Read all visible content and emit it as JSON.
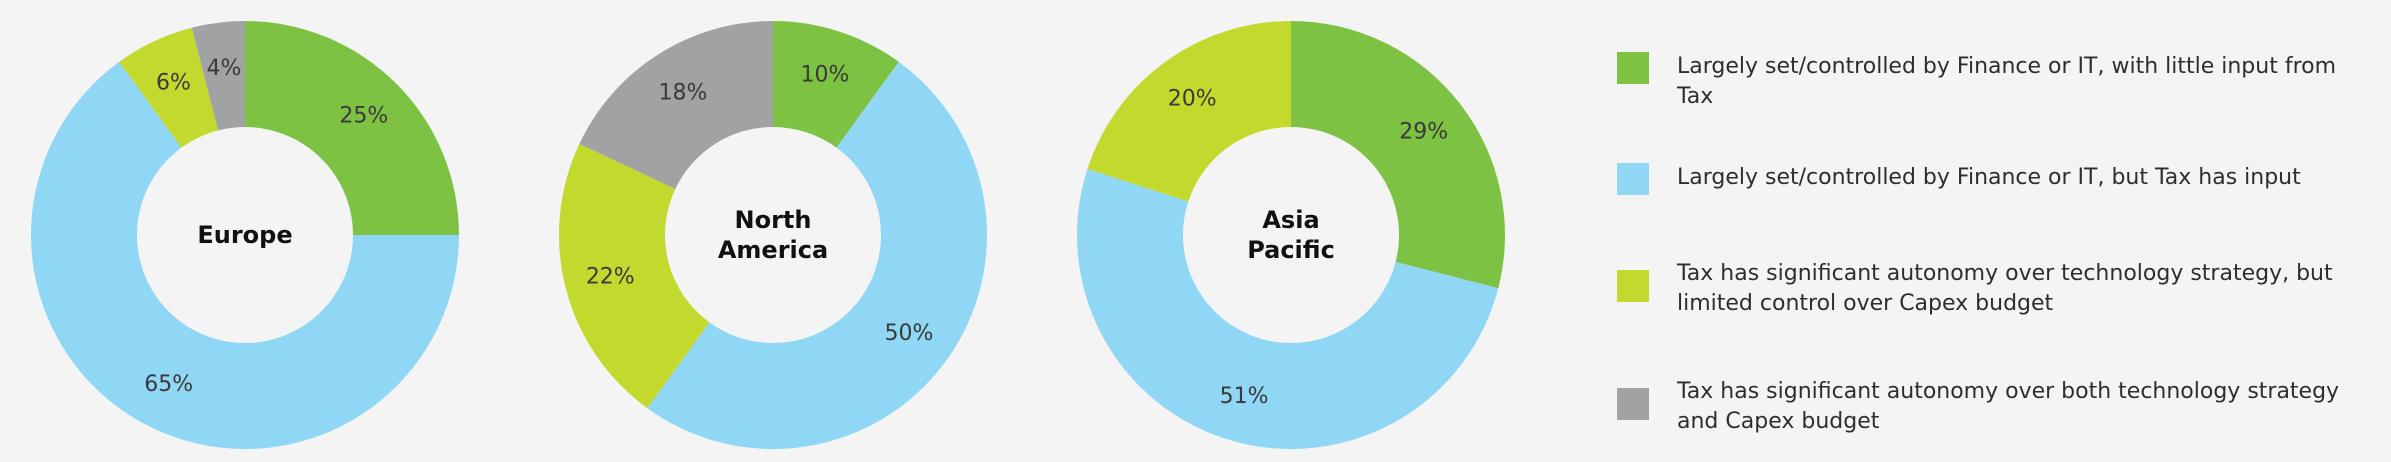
{
  "colors": {
    "background": "#f4f4f4",
    "finance_little_input": "#7dc242",
    "finance_tax_input": "#8fd7f5",
    "tax_autonomy_tech": "#c4d92e",
    "tax_autonomy_both": "#a0a2a4"
  },
  "chart_data": [
    {
      "type": "pie",
      "title": "Europe",
      "center_lines": [
        "Europe"
      ],
      "donut": true,
      "start_angle": "12 o'clock, clockwise",
      "categories": [
        "Largely set/controlled by Finance or IT, with little input from Tax",
        "Largely set/controlled by Finance or IT, but Tax has input",
        "Tax has significant autonomy over technology strategy, but limited control over Capex budget",
        "Tax has significant autonomy over both technology strategy and Capex budget"
      ],
      "values": [
        25,
        65,
        6,
        4
      ],
      "labels": [
        "25%",
        "65%",
        "6%",
        "4%"
      ]
    },
    {
      "type": "pie",
      "title": "North America",
      "center_lines": [
        "North",
        "America"
      ],
      "donut": true,
      "start_angle": "12 o'clock, clockwise",
      "categories": [
        "Largely set/controlled by Finance or IT, with little input from Tax",
        "Largely set/controlled by Finance or IT, but Tax has input",
        "Tax has significant autonomy over technology strategy, but limited control over Capex budget",
        "Tax has significant autonomy over both technology strategy and Capex budget"
      ],
      "values": [
        10,
        50,
        22,
        18
      ],
      "labels": [
        "10%",
        "50%",
        "22%",
        "18%"
      ]
    },
    {
      "type": "pie",
      "title": "Asia Pacific",
      "center_lines": [
        "Asia",
        "Pacific"
      ],
      "donut": true,
      "start_angle": "12 o'clock, clockwise",
      "categories": [
        "Largely set/controlled by Finance or IT, with little input from Tax",
        "Largely set/controlled by Finance or IT, but Tax has input",
        "Tax has significant autonomy over technology strategy, but limited control over Capex budget"
      ],
      "values": [
        29,
        51,
        20
      ],
      "labels": [
        "29%",
        "51%",
        "20%"
      ]
    }
  ],
  "legend": {
    "placement": "right",
    "items": [
      {
        "label": "Largely set/controlled by Finance or IT, with little input from Tax",
        "color": "#7dc242"
      },
      {
        "label": "Largely set/controlled by Finance or IT, but Tax has input",
        "color": "#8fd7f5"
      },
      {
        "label": "Tax has significant autonomy over technology strategy, but limited control over Capex budget",
        "color": "#c4d92e"
      },
      {
        "label": "Tax has significant autonomy over both technology strategy and Capex budget",
        "color": "#a0a2a4"
      }
    ]
  }
}
